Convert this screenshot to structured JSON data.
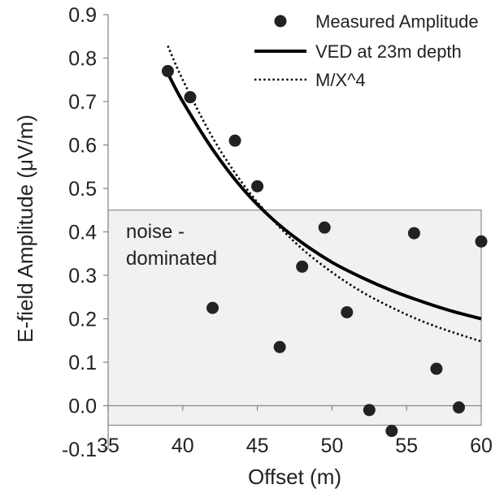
{
  "chart_data": {
    "type": "scatter",
    "title": "",
    "xlabel": "Offset (m)",
    "ylabel": "E-field Amplitude   (μV/m)",
    "xlim": [
      35,
      60
    ],
    "ylim": [
      -0.1,
      0.9
    ],
    "xticks": [
      "35",
      "40",
      "45",
      "50",
      "55",
      "60"
    ],
    "yticks": [
      "-0.1",
      "0.0",
      "0.1",
      "0.2",
      "0.3",
      "0.4",
      "0.5",
      "0.6",
      "0.7",
      "0.8",
      "0.9"
    ],
    "grid": false,
    "legend_position": "top-right",
    "series": [
      {
        "name": "Measured Amplitude",
        "style": "markers",
        "color": "#222222",
        "x": [
          39,
          40.5,
          42,
          43.5,
          45,
          46.5,
          48,
          49.5,
          51,
          52.5,
          54,
          55.5,
          57,
          58.5,
          60
        ],
        "y": [
          0.77,
          0.71,
          0.225,
          0.61,
          0.505,
          0.135,
          0.32,
          0.41,
          0.215,
          -0.01,
          -0.058,
          0.397,
          0.085,
          -0.004,
          0.378
        ]
      },
      {
        "name": "VED at 23m depth",
        "style": "solid-line",
        "color": "#000000",
        "x": [
          39,
          40,
          42,
          44,
          46,
          48,
          50,
          52,
          54,
          56,
          58,
          60
        ],
        "y": [
          0.765,
          0.7,
          0.59,
          0.5,
          0.43,
          0.375,
          0.33,
          0.295,
          0.265,
          0.24,
          0.218,
          0.2
        ]
      },
      {
        "name": "M/X^4",
        "style": "dotted-line",
        "color": "#000000",
        "x": [
          39,
          40,
          42,
          44,
          46,
          48,
          50,
          52,
          54,
          56,
          58,
          60
        ],
        "y": [
          0.828,
          0.75,
          0.617,
          0.512,
          0.429,
          0.361,
          0.307,
          0.262,
          0.226,
          0.195,
          0.17,
          0.148
        ]
      }
    ],
    "annotations": [
      {
        "label": "noise - dominated",
        "lines": [
          "noise -",
          "dominated"
        ],
        "region": {
          "x": [
            35,
            60
          ],
          "y": [
            -0.045,
            0.45
          ]
        },
        "fill": "#f1f1f1"
      }
    ]
  }
}
